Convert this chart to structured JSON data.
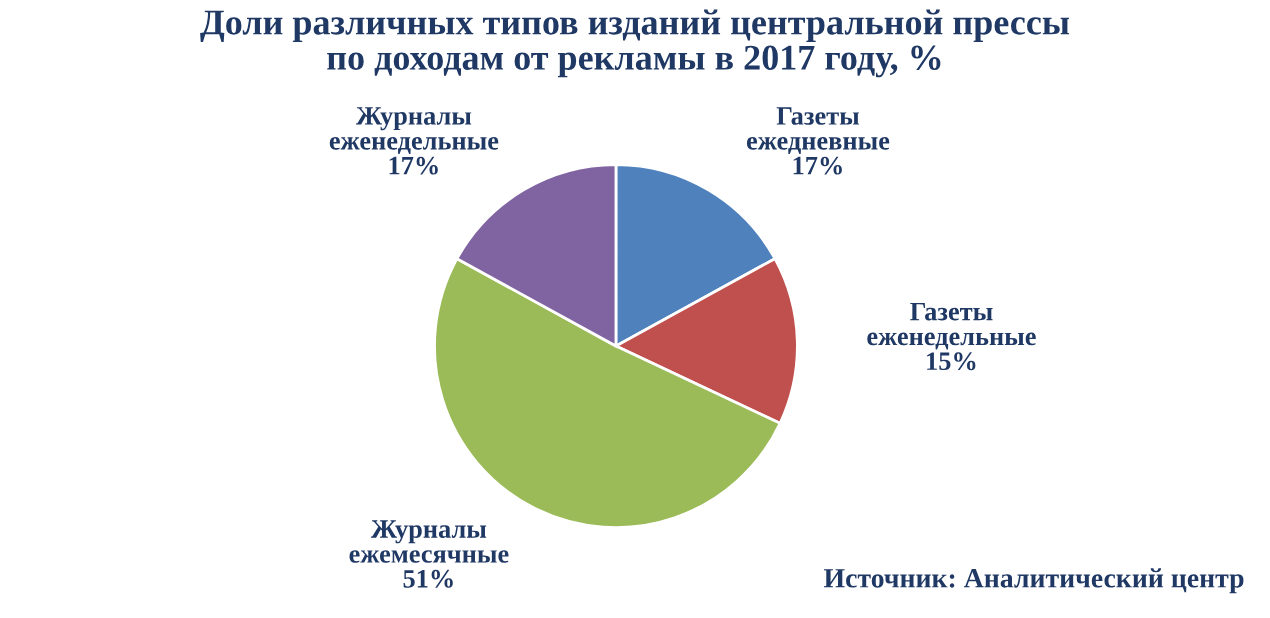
{
  "chart_data": {
    "type": "pie",
    "title": "Доли различных типов изданий центральной прессы\nпо доходам от рекламы в 2017 году, %",
    "categories": [
      "Газеты ежедневные",
      "Газеты еженедельные",
      "Журналы ежемесячные",
      "Журналы еженедельные"
    ],
    "values": [
      17,
      15,
      51,
      17
    ],
    "value_labels": [
      "17%",
      "15%",
      "51%",
      "17%"
    ],
    "colors": [
      "#4f81bd",
      "#c0504d",
      "#9bbb59",
      "#8064a2"
    ],
    "annotations": [
      "Источник: Аналитический центр"
    ],
    "legend": false
  }
}
